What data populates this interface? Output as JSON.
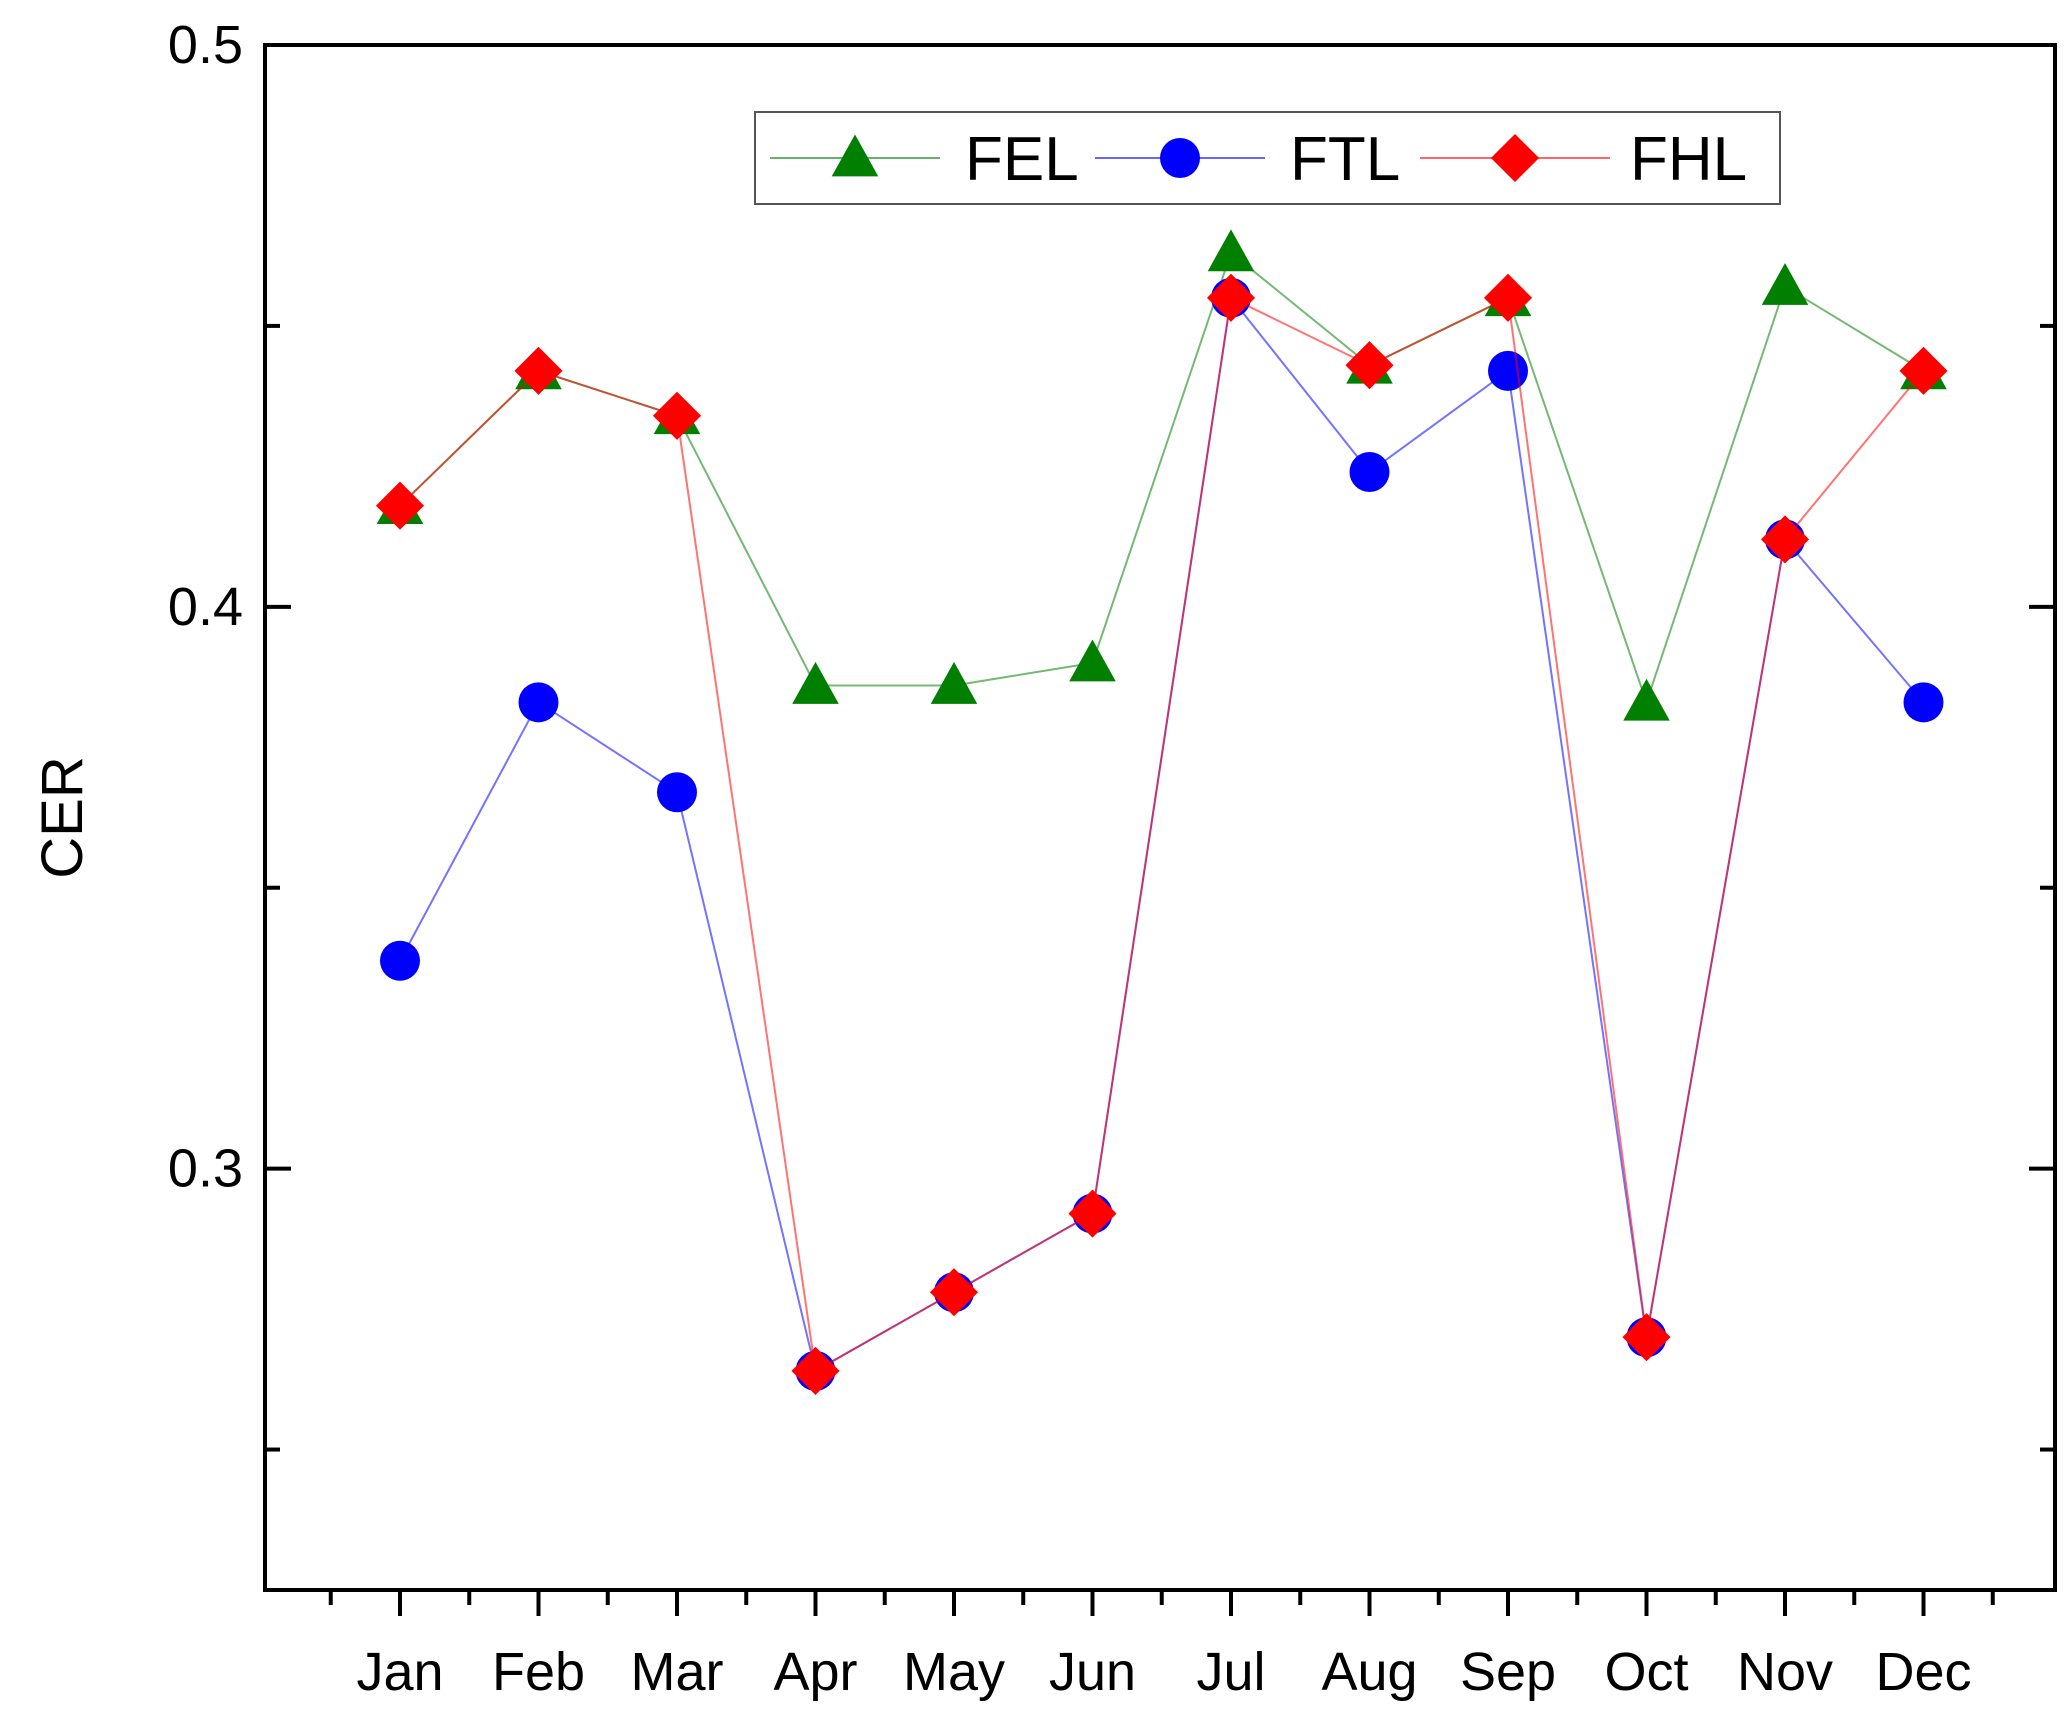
{
  "chart_data": {
    "type": "line",
    "title": "",
    "xlabel": "",
    "ylabel": "CER",
    "categories": [
      "Jan",
      "Feb",
      "Mar",
      "Apr",
      "May",
      "Jun",
      "Jul",
      "Aug",
      "Sep",
      "Oct",
      "Nov",
      "Dec"
    ],
    "ylim": [
      0.225,
      0.5
    ],
    "yticks": [
      0.3,
      0.4,
      0.5
    ],
    "ytick_labels": [
      "0.3",
      "0.4",
      "0.5"
    ],
    "yminor_ticks": [
      0.25,
      0.35,
      0.45
    ],
    "grid": false,
    "legend_position": "top-right",
    "series": [
      {
        "name": "FEL",
        "color": "#007f00",
        "marker": "triangle",
        "values": [
          0.418,
          0.442,
          0.434,
          0.386,
          0.386,
          0.39,
          0.463,
          0.443,
          0.455,
          0.383,
          0.457,
          0.442
        ]
      },
      {
        "name": "FTL",
        "color": "#0000ff",
        "marker": "circle",
        "values": [
          0.337,
          0.383,
          0.367,
          0.264,
          0.278,
          0.292,
          0.455,
          0.424,
          0.442,
          0.27,
          0.412,
          0.383
        ]
      },
      {
        "name": "FHL",
        "color": "#ff0000",
        "marker": "diamond",
        "values": [
          0.418,
          0.442,
          0.434,
          0.264,
          0.278,
          0.292,
          0.455,
          0.443,
          0.455,
          0.27,
          0.412,
          0.442
        ]
      }
    ]
  }
}
